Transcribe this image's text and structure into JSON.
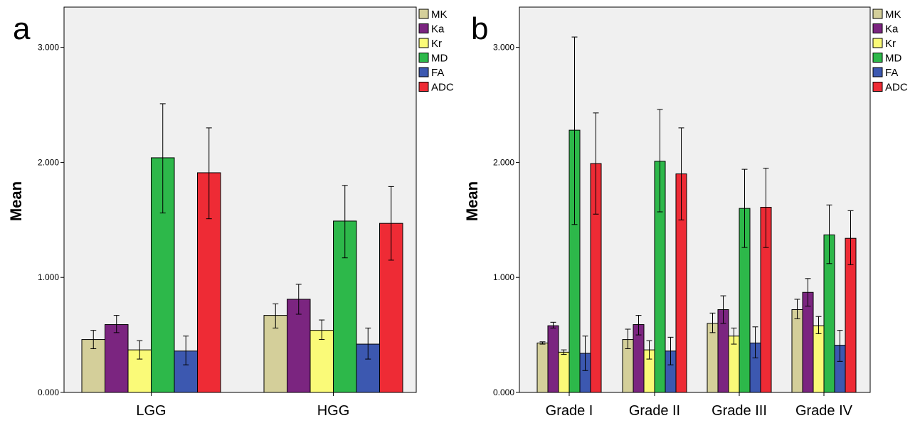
{
  "chart_data": [
    {
      "type": "bar",
      "panel_label": "a",
      "ylabel": "Mean",
      "xlabel": "",
      "ylim": [
        0,
        3.35
      ],
      "y_ticks": [
        0,
        1,
        2,
        3
      ],
      "y_tick_labels": [
        "0.000",
        "1.000",
        "2.000",
        "3.000"
      ],
      "categories": [
        "LGG",
        "HGG"
      ],
      "legend_position": "top-right",
      "series": [
        {
          "name": "MK",
          "color": "#d4cf9a",
          "values": [
            0.46,
            0.67
          ],
          "err_low": [
            0.38,
            0.56
          ],
          "err_high": [
            0.54,
            0.77
          ]
        },
        {
          "name": "Ka",
          "color": "#7b2580",
          "values": [
            0.59,
            0.81
          ],
          "err_low": [
            0.52,
            0.68
          ],
          "err_high": [
            0.67,
            0.94
          ]
        },
        {
          "name": "Kr",
          "color": "#fafa78",
          "values": [
            0.37,
            0.54
          ],
          "err_low": [
            0.29,
            0.46
          ],
          "err_high": [
            0.45,
            0.63
          ]
        },
        {
          "name": "MD",
          "color": "#2db84a",
          "values": [
            2.04,
            1.49
          ],
          "err_low": [
            1.56,
            1.17
          ],
          "err_high": [
            2.51,
            1.8
          ]
        },
        {
          "name": "FA",
          "color": "#3c58b0",
          "values": [
            0.36,
            0.42
          ],
          "err_low": [
            0.24,
            0.29
          ],
          "err_high": [
            0.49,
            0.56
          ]
        },
        {
          "name": "ADC",
          "color": "#ee2b35",
          "values": [
            1.91,
            1.47
          ],
          "err_low": [
            1.51,
            1.15
          ],
          "err_high": [
            2.3,
            1.79
          ]
        }
      ]
    },
    {
      "type": "bar",
      "panel_label": "b",
      "ylabel": "Mean",
      "xlabel": "",
      "ylim": [
        0,
        3.35
      ],
      "y_ticks": [
        0,
        1,
        2,
        3
      ],
      "y_tick_labels": [
        "0.000",
        "1.000",
        "2.000",
        "3.000"
      ],
      "categories": [
        "Grade I",
        "Grade II",
        "Grade III",
        "Grade IV"
      ],
      "legend_position": "top-right",
      "series": [
        {
          "name": "MK",
          "color": "#d4cf9a",
          "values": [
            0.43,
            0.46,
            0.6,
            0.72
          ],
          "err_low": [
            0.42,
            0.38,
            0.52,
            0.64
          ],
          "err_high": [
            0.44,
            0.55,
            0.69,
            0.81
          ]
        },
        {
          "name": "Ka",
          "color": "#7b2580",
          "values": [
            0.58,
            0.59,
            0.72,
            0.87
          ],
          "err_low": [
            0.56,
            0.5,
            0.6,
            0.75
          ],
          "err_high": [
            0.61,
            0.67,
            0.84,
            0.99
          ]
        },
        {
          "name": "Kr",
          "color": "#fafa78",
          "values": [
            0.35,
            0.37,
            0.49,
            0.58
          ],
          "err_low": [
            0.33,
            0.29,
            0.42,
            0.51
          ],
          "err_high": [
            0.37,
            0.45,
            0.56,
            0.66
          ]
        },
        {
          "name": "MD",
          "color": "#2db84a",
          "values": [
            2.28,
            2.01,
            1.6,
            1.37
          ],
          "err_low": [
            1.46,
            1.57,
            1.26,
            1.12
          ],
          "err_high": [
            3.09,
            2.46,
            1.94,
            1.63
          ]
        },
        {
          "name": "FA",
          "color": "#3c58b0",
          "values": [
            0.34,
            0.36,
            0.43,
            0.41
          ],
          "err_low": [
            0.19,
            0.24,
            0.3,
            0.27
          ],
          "err_high": [
            0.49,
            0.48,
            0.57,
            0.54
          ]
        },
        {
          "name": "ADC",
          "color": "#ee2b35",
          "values": [
            1.99,
            1.9,
            1.61,
            1.34
          ],
          "err_low": [
            1.55,
            1.5,
            1.26,
            1.11
          ],
          "err_high": [
            2.43,
            2.3,
            1.95,
            1.58
          ]
        }
      ]
    }
  ]
}
